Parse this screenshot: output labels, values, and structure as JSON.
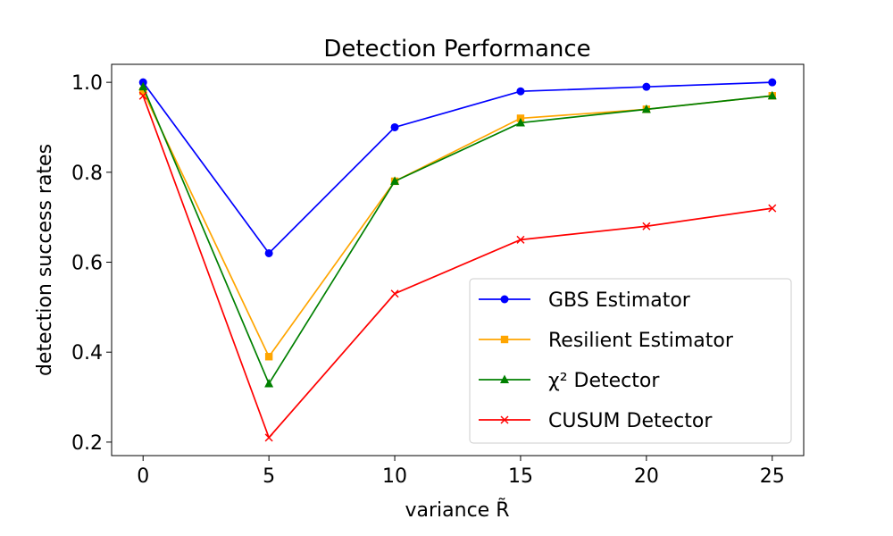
{
  "chart_data": {
    "type": "line",
    "title": "Detection Performance",
    "xlabel": "variance R̃",
    "ylabel": "detection success rates",
    "xlim": [
      -1.25,
      26.25
    ],
    "ylim": [
      0.17,
      1.04
    ],
    "xticks": [
      0,
      5,
      10,
      15,
      20,
      25
    ],
    "yticks": [
      0.2,
      0.4,
      0.6,
      0.8,
      1.0
    ],
    "xtick_labels": [
      "0",
      "5",
      "10",
      "15",
      "20",
      "25"
    ],
    "ytick_labels": [
      "0.2",
      "0.4",
      "0.6",
      "0.8",
      "1.0"
    ],
    "x": [
      0,
      5,
      10,
      15,
      20,
      25
    ],
    "legend_position": "lower-right",
    "series": [
      {
        "name": "GBS Estimator",
        "color": "#0000ff",
        "marker": "circle",
        "values": [
          1.0,
          0.62,
          0.9,
          0.98,
          0.99,
          1.0
        ]
      },
      {
        "name": "Resilient Estimator",
        "color": "#ffa500",
        "marker": "square",
        "values": [
          0.98,
          0.39,
          0.78,
          0.92,
          0.94,
          0.97
        ]
      },
      {
        "name": "χ² Detector",
        "color": "#008000",
        "marker": "triangle",
        "values": [
          0.99,
          0.33,
          0.78,
          0.91,
          0.94,
          0.97
        ]
      },
      {
        "name": "CUSUM Detector",
        "color": "#ff0000",
        "marker": "x",
        "values": [
          0.97,
          0.21,
          0.53,
          0.65,
          0.68,
          0.72
        ]
      }
    ]
  }
}
